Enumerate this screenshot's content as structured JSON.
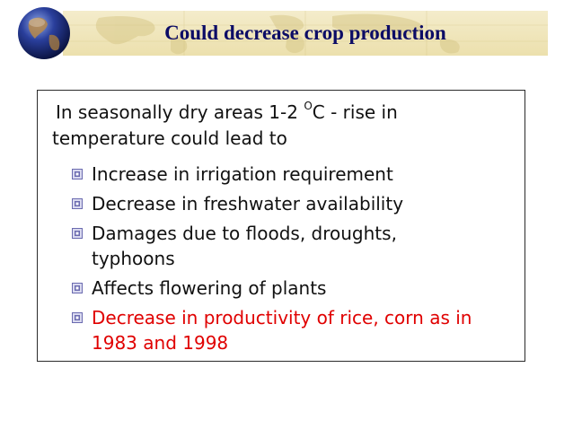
{
  "title": "Could decrease crop production",
  "intro": {
    "line1_before": "In seasonally dry areas 1-2 ",
    "sup": "O",
    "line1_after": "C - rise in",
    "line2": "temperature could lead to"
  },
  "bullets": [
    {
      "text": "Increase in irrigation requirement",
      "highlight": false
    },
    {
      "text": "Decrease in freshwater availability",
      "highlight": false
    },
    {
      "text": "Damages due to floods, droughts,",
      "text2": "typhoons",
      "highlight": false
    },
    {
      "text": "Affects flowering of plants",
      "highlight": false
    },
    {
      "text": "Decrease in productivity of rice, corn as in",
      "text2": "1983 and 1998",
      "highlight": true
    }
  ],
  "colors": {
    "title_text": "#0c0c66",
    "title_band": "#ece0ad",
    "body_text": "#111111",
    "highlight": "#e00000",
    "bullet_icon": "#6b6bb0"
  },
  "icons": {
    "decoration": "globe-icon",
    "bullet": "square-bullet-icon"
  }
}
